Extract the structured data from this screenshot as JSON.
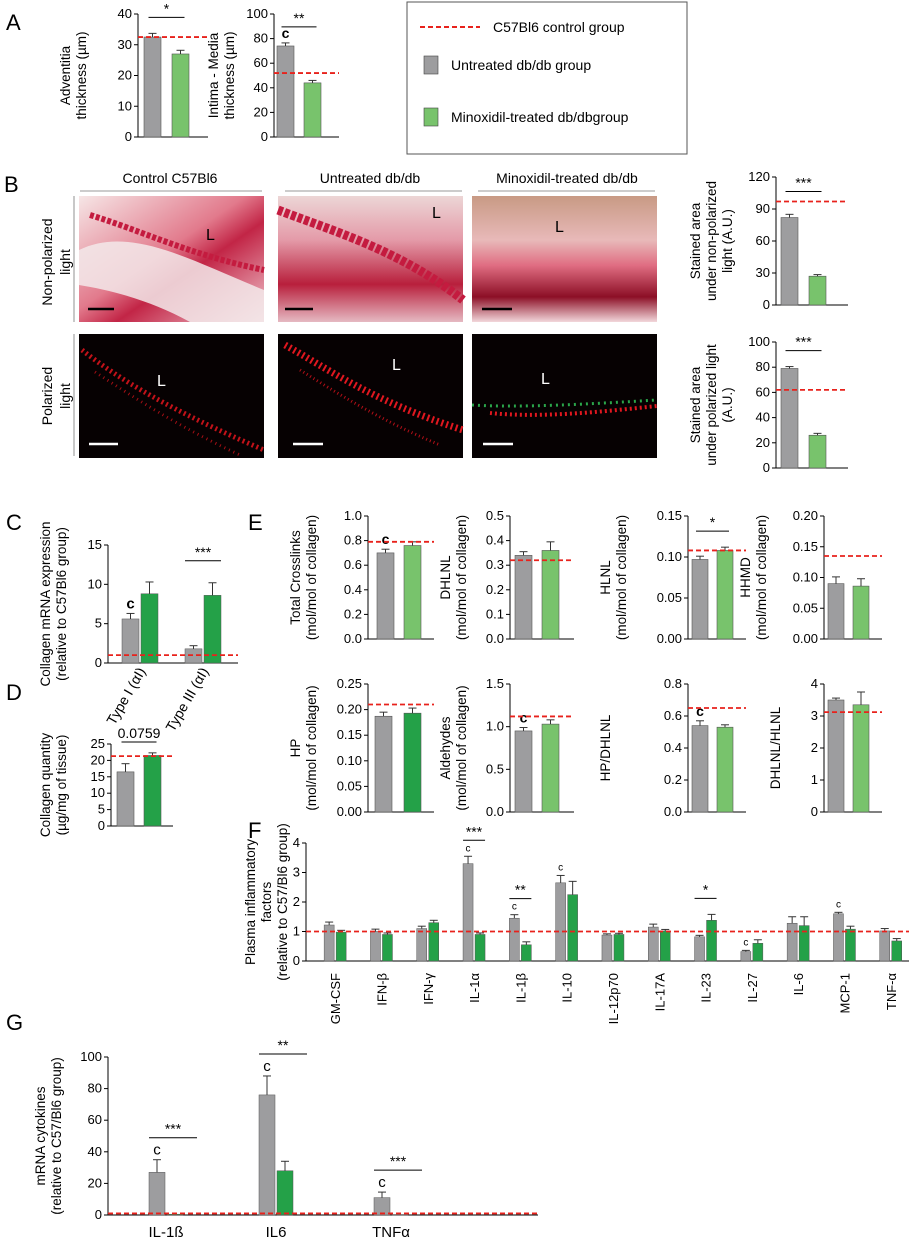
{
  "colors": {
    "control": "#e8221c",
    "untreated": "#9d9d9f",
    "mino_light": "#78c36c",
    "mino_dark": "#24a148",
    "axis": "#000000"
  },
  "legend": {
    "control": "C57Bl6 control group",
    "untreated": "Untreated db/db group",
    "minoxidil": "Minoxidil-treated db/dbgroup"
  },
  "panel_labels": {
    "A": "A",
    "B": "B",
    "C": "C",
    "D": "D",
    "E": "E",
    "F": "F",
    "G": "G"
  },
  "micrographs": {
    "columns": [
      "Control C57Bl6",
      "Untreated db/db",
      "Minoxidil-treated  db/db"
    ],
    "rows": [
      "Non-polarized light",
      "Polarized light"
    ],
    "lumen_label": "L"
  },
  "chart_data": [
    {
      "id": "A1",
      "type": "bar",
      "ylabel": [
        "Adventitia",
        "thickness (µm)"
      ],
      "categories": [
        "Untreated",
        "Minoxidil"
      ],
      "values": [
        32.5,
        27
      ],
      "errors": [
        1.2,
        1.2
      ],
      "ylim": [
        0,
        40
      ],
      "yticks": [
        "0",
        "10",
        "20",
        "30",
        "40"
      ],
      "control_line": 32.5,
      "sig": [
        {
          "from": 0,
          "to": 1,
          "label": "*"
        }
      ],
      "c_labels": [],
      "series_colors": [
        "untreated",
        "mino_light"
      ]
    },
    {
      "id": "A2",
      "type": "bar",
      "ylabel": [
        "Intima - Media",
        "thickness (µm)"
      ],
      "categories": [
        "Untreated",
        "Minoxidil"
      ],
      "values": [
        74,
        44
      ],
      "errors": [
        2.5,
        2
      ],
      "ylim": [
        0,
        100
      ],
      "yticks": [
        "0",
        "20",
        "40",
        "60",
        "80",
        "100"
      ],
      "control_line": 52,
      "sig": [
        {
          "from": 0,
          "to": 1,
          "label": "**"
        }
      ],
      "c_labels": [
        {
          "bar": 0,
          "text": "c"
        }
      ],
      "series_colors": [
        "untreated",
        "mino_light"
      ]
    },
    {
      "id": "B1",
      "type": "bar",
      "ylabel": [
        "Stained area",
        "under non-polarized",
        "light (A.U.)"
      ],
      "categories": [
        "Untreated",
        "Minoxidil"
      ],
      "values": [
        82,
        27
      ],
      "errors": [
        3,
        1.5
      ],
      "ylim": [
        0,
        120
      ],
      "yticks": [
        "0",
        "30",
        "60",
        "90",
        "120"
      ],
      "control_line": 97,
      "sig": [
        {
          "from": 0,
          "to": 1,
          "label": "***"
        }
      ],
      "c_labels": [],
      "series_colors": [
        "untreated",
        "mino_light"
      ]
    },
    {
      "id": "B2",
      "type": "bar",
      "ylabel": [
        "Stained area",
        "under polarized  light",
        "(A.U.)"
      ],
      "categories": [
        "Untreated",
        "Minoxidil"
      ],
      "values": [
        79,
        26
      ],
      "errors": [
        1.5,
        1.5
      ],
      "ylim": [
        0,
        100
      ],
      "yticks": [
        "0",
        "20",
        "40",
        "60",
        "80",
        "100"
      ],
      "control_line": 62,
      "sig": [
        {
          "from": 0,
          "to": 1,
          "label": "***"
        }
      ],
      "c_labels": [],
      "series_colors": [
        "untreated",
        "mino_light"
      ]
    },
    {
      "id": "C",
      "type": "bar",
      "ylabel": [
        "Collagen mRNA expression",
        "(relative to C57Bl6 group)"
      ],
      "categories": [
        "Type I (αI)",
        "Type III (αI)"
      ],
      "series": [
        {
          "name": "Untreated",
          "values": [
            5.6,
            1.8
          ],
          "errors": [
            0.7,
            0.4
          ]
        },
        {
          "name": "Minoxidil",
          "values": [
            8.8,
            8.6
          ],
          "errors": [
            1.5,
            1.6
          ]
        }
      ],
      "ylim": [
        0,
        15
      ],
      "yticks": [
        "0",
        "5",
        "10",
        "15"
      ],
      "control_line": 1,
      "sig": [
        {
          "group": 1,
          "label": "***"
        }
      ],
      "c_labels": [
        {
          "group": 0,
          "series": 0,
          "text": "c"
        }
      ],
      "series_colors": [
        "untreated",
        "mino_dark"
      ]
    },
    {
      "id": "D",
      "type": "bar",
      "ylabel": [
        "Collagen quantity",
        "(µg/mg of tissue)"
      ],
      "categories": [
        "Untreated",
        "Minoxidil"
      ],
      "values": [
        16.5,
        21.5
      ],
      "errors": [
        2.5,
        0.8
      ],
      "ylim": [
        0,
        25
      ],
      "yticks": [
        "0",
        "5",
        "10",
        "15",
        "20",
        "25"
      ],
      "control_line": 21.3,
      "sig": [
        {
          "from": 0,
          "to": 1,
          "label": "0.0759"
        }
      ],
      "c_labels": [],
      "series_colors": [
        "untreated",
        "mino_dark"
      ]
    },
    {
      "id": "E1",
      "type": "bar",
      "ylabel": [
        "Total Crosslinks",
        "(mol/mol of collagen)"
      ],
      "categories": [
        "Untreated",
        "Minoxidil"
      ],
      "values": [
        0.7,
        0.76
      ],
      "errors": [
        0.03,
        0.03
      ],
      "ylim": [
        0,
        1
      ],
      "yticks": [
        "0.0",
        "0.2",
        "0.4",
        "0.6",
        "0.8",
        "1.0"
      ],
      "control_line": 0.79,
      "sig": [],
      "c_labels": [
        {
          "bar": 0,
          "text": "c"
        }
      ],
      "series_colors": [
        "untreated",
        "mino_light"
      ]
    },
    {
      "id": "E2",
      "type": "bar",
      "ylabel": [
        "DHLNL",
        "(mol/mol of collagen)"
      ],
      "categories": [
        "Untreated",
        "Minoxidil"
      ],
      "values": [
        0.34,
        0.36
      ],
      "errors": [
        0.015,
        0.035
      ],
      "ylim": [
        0,
        0.5
      ],
      "yticks": [
        "0.0",
        "0.1",
        "0.2",
        "0.3",
        "0.4",
        "0.5"
      ],
      "control_line": 0.32,
      "sig": [],
      "c_labels": [],
      "series_colors": [
        "untreated",
        "mino_light"
      ]
    },
    {
      "id": "E3",
      "type": "bar",
      "ylabel": [
        "HLNL",
        "(mol/mol of collagen)"
      ],
      "categories": [
        "Untreated",
        "Minoxidil"
      ],
      "values": [
        0.097,
        0.108
      ],
      "errors": [
        0.004,
        0.004
      ],
      "ylim": [
        0,
        0.15
      ],
      "yticks": [
        "0.00",
        "0.05",
        "0.10",
        "0.15"
      ],
      "control_line": 0.108,
      "sig": [
        {
          "from": 0,
          "to": 1,
          "label": "*"
        }
      ],
      "c_labels": [],
      "series_colors": [
        "untreated",
        "mino_light"
      ]
    },
    {
      "id": "E4",
      "type": "bar",
      "ylabel": [
        "HHMD",
        "(mol/mol of collagen)"
      ],
      "categories": [
        "Untreated",
        "Minoxidil"
      ],
      "values": [
        0.09,
        0.086
      ],
      "errors": [
        0.011,
        0.012
      ],
      "ylim": [
        0,
        0.2
      ],
      "yticks": [
        "0.00",
        "0.05",
        "0.10",
        "0.15",
        "0.20"
      ],
      "control_line": 0.135,
      "sig": [],
      "c_labels": [],
      "series_colors": [
        "untreated",
        "mino_light"
      ]
    },
    {
      "id": "E5",
      "type": "bar",
      "ylabel": [
        "HP",
        "(mol/mol of collagen)"
      ],
      "categories": [
        "Untreated",
        "Minoxidil"
      ],
      "values": [
        0.187,
        0.193
      ],
      "errors": [
        0.008,
        0.01
      ],
      "ylim": [
        0,
        0.25
      ],
      "yticks": [
        "0.00",
        "0.05",
        "0.10",
        "0.15",
        "0.20",
        "0.25"
      ],
      "control_line": 0.21,
      "sig": [],
      "c_labels": [],
      "series_colors": [
        "untreated",
        "mino_dark"
      ]
    },
    {
      "id": "E6",
      "type": "bar",
      "ylabel": [
        "Aldehydes",
        "(mol/mol of collagen)"
      ],
      "categories": [
        "Untreated",
        "Minoxidil"
      ],
      "values": [
        0.95,
        1.03
      ],
      "errors": [
        0.04,
        0.05
      ],
      "ylim": [
        0,
        1.5
      ],
      "yticks": [
        "0.0",
        "0.5",
        "1.0",
        "1.5"
      ],
      "control_line": 1.12,
      "sig": [],
      "c_labels": [
        {
          "bar": 0,
          "text": "c"
        }
      ],
      "series_colors": [
        "untreated",
        "mino_light"
      ]
    },
    {
      "id": "E7",
      "type": "bar",
      "ylabel": [
        "HP/DHLNL"
      ],
      "categories": [
        "Untreated",
        "Minoxidil"
      ],
      "values": [
        0.54,
        0.53
      ],
      "errors": [
        0.03,
        0.015
      ],
      "ylim": [
        0,
        0.8
      ],
      "yticks": [
        "0.0",
        "0.2",
        "0.4",
        "0.6",
        "0.8"
      ],
      "control_line": 0.65,
      "sig": [],
      "c_labels": [
        {
          "bar": 0,
          "text": "c"
        }
      ],
      "series_colors": [
        "untreated",
        "mino_light"
      ]
    },
    {
      "id": "E8",
      "type": "bar",
      "ylabel": [
        "DHLNL/HLNL"
      ],
      "categories": [
        "Untreated",
        "Minoxidil"
      ],
      "values": [
        3.5,
        3.35
      ],
      "errors": [
        0.06,
        0.4
      ],
      "ylim": [
        0,
        4
      ],
      "yticks": [
        "0",
        "1",
        "2",
        "3",
        "4"
      ],
      "control_line": 3.12,
      "sig": [],
      "c_labels": [],
      "series_colors": [
        "untreated",
        "mino_light"
      ]
    },
    {
      "id": "F",
      "type": "bar",
      "ylabel": [
        "Plasma inflammatory",
        "factors",
        "(relative to C57/Bl6 group)"
      ],
      "categories": [
        "GM-CSF",
        "IFN-β",
        "IFN-γ",
        "IL-1α",
        "IL-1β",
        "IL-10",
        "IL-12p70",
        "IL-17A",
        "IL-23",
        "IL-27",
        "IL-6",
        "MCP-1",
        "TNF-α"
      ],
      "series": [
        {
          "name": "Untreated",
          "values": [
            1.22,
            1.0,
            1.1,
            3.3,
            1.45,
            2.65,
            0.88,
            1.15,
            0.82,
            0.32,
            1.28,
            1.6,
            1.02
          ],
          "errors": [
            0.1,
            0.08,
            0.08,
            0.25,
            0.12,
            0.25,
            0.04,
            0.1,
            0.05,
            0.04,
            0.22,
            0.05,
            0.08
          ]
        },
        {
          "name": "Minoxidil",
          "values": [
            0.98,
            0.9,
            1.3,
            0.9,
            0.55,
            2.25,
            0.9,
            1.02,
            1.38,
            0.6,
            1.2,
            1.08,
            0.68
          ]
        }
      ],
      "errors2": [
        0.06,
        0.05,
        0.08,
        0.05,
        0.1,
        0.45,
        0.04,
        0.05,
        0.2,
        0.12,
        0.3,
        0.1,
        0.08
      ],
      "ylim": [
        0,
        4
      ],
      "yticks": [
        "0",
        "1",
        "2",
        "3",
        "4"
      ],
      "control_line": 1,
      "sig": [
        {
          "group": 3,
          "label": "***"
        },
        {
          "group": 4,
          "label": "**"
        },
        {
          "group": 8,
          "label": "*"
        }
      ],
      "c_labels": [
        {
          "group": 3,
          "series": 0,
          "text": "c"
        },
        {
          "group": 4,
          "series": 0,
          "text": "c"
        },
        {
          "group": 5,
          "series": 0,
          "text": "c"
        },
        {
          "group": 9,
          "series": 0,
          "text": "c"
        },
        {
          "group": 11,
          "series": 0,
          "text": "c"
        }
      ],
      "series_colors": [
        "untreated",
        "mino_dark"
      ]
    },
    {
      "id": "G",
      "type": "bar",
      "ylabel": [
        "mRNA  cytokines",
        "(relative to C57/Bl6 group)"
      ],
      "categories": [
        "IL-1ß",
        "IL6",
        "TNFα"
      ],
      "series": [
        {
          "name": "Untreated",
          "values": [
            27,
            76,
            11
          ],
          "errors": [
            8,
            12,
            3.5
          ]
        },
        {
          "name": "Minoxidil",
          "values": [
            0.5,
            28,
            0.3
          ]
        }
      ],
      "errors2": [
        0,
        6,
        0
      ],
      "ylim": [
        0,
        100
      ],
      "yticks": [
        "0",
        "20",
        "40",
        "60",
        "80",
        "100"
      ],
      "control_line": 1,
      "sig": [
        {
          "group": 0,
          "label": "***"
        },
        {
          "group": 1,
          "label": "**"
        },
        {
          "group": 2,
          "label": "***"
        }
      ],
      "c_labels": [
        {
          "group": 0,
          "series": 0,
          "text": "c"
        },
        {
          "group": 1,
          "series": 0,
          "text": "c"
        },
        {
          "group": 2,
          "series": 0,
          "text": "c"
        }
      ],
      "series_colors": [
        "untreated",
        "mino_dark"
      ]
    }
  ]
}
